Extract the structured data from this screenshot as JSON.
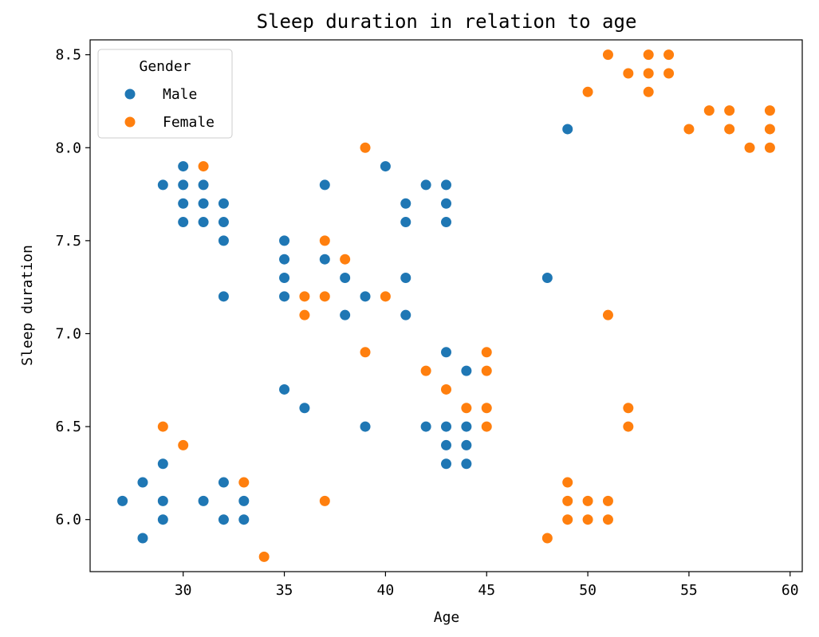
{
  "chart_data": {
    "type": "scatter",
    "title": "Sleep duration in relation to age",
    "xlabel": "Age",
    "ylabel": "Sleep duration",
    "xlim": [
      25.4,
      60.6
    ],
    "ylim": [
      5.72,
      8.58
    ],
    "xticks": [
      "30",
      "35",
      "40",
      "45",
      "50",
      "55",
      "60"
    ],
    "yticks": [
      "6.0",
      "6.5",
      "7.0",
      "7.5",
      "8.0",
      "8.5"
    ],
    "grid": false,
    "legend": {
      "title": "Gender",
      "placement": "top-left"
    },
    "series": [
      {
        "name": "Male",
        "color": "#1f77b4",
        "points": [
          [
            27,
            6.1
          ],
          [
            28,
            6.2
          ],
          [
            28,
            5.9
          ],
          [
            29,
            7.8
          ],
          [
            29,
            6.3
          ],
          [
            29,
            6.1
          ],
          [
            29,
            6.0
          ],
          [
            30,
            7.9
          ],
          [
            30,
            7.8
          ],
          [
            30,
            7.7
          ],
          [
            30,
            7.6
          ],
          [
            31,
            7.8
          ],
          [
            31,
            7.7
          ],
          [
            31,
            7.6
          ],
          [
            31,
            6.1
          ],
          [
            32,
            7.7
          ],
          [
            32,
            7.6
          ],
          [
            32,
            7.5
          ],
          [
            32,
            7.2
          ],
          [
            32,
            6.2
          ],
          [
            32,
            6.0
          ],
          [
            33,
            6.1
          ],
          [
            33,
            6.0
          ],
          [
            35,
            7.5
          ],
          [
            35,
            7.4
          ],
          [
            35,
            7.3
          ],
          [
            35,
            7.2
          ],
          [
            35,
            6.7
          ],
          [
            36,
            6.6
          ],
          [
            37,
            7.8
          ],
          [
            37,
            7.4
          ],
          [
            38,
            7.3
          ],
          [
            38,
            7.1
          ],
          [
            39,
            7.2
          ],
          [
            39,
            6.5
          ],
          [
            40,
            7.9
          ],
          [
            41,
            7.7
          ],
          [
            41,
            7.6
          ],
          [
            41,
            7.3
          ],
          [
            41,
            7.1
          ],
          [
            42,
            7.8
          ],
          [
            42,
            6.5
          ],
          [
            43,
            7.8
          ],
          [
            43,
            7.7
          ],
          [
            43,
            7.6
          ],
          [
            43,
            6.9
          ],
          [
            43,
            6.5
          ],
          [
            43,
            6.4
          ],
          [
            43,
            6.3
          ],
          [
            44,
            6.8
          ],
          [
            44,
            6.5
          ],
          [
            44,
            6.4
          ],
          [
            44,
            6.3
          ],
          [
            48,
            7.3
          ],
          [
            49,
            8.1
          ]
        ]
      },
      {
        "name": "Female",
        "color": "#ff7f0e",
        "points": [
          [
            29,
            6.5
          ],
          [
            30,
            6.4
          ],
          [
            31,
            7.9
          ],
          [
            33,
            6.2
          ],
          [
            34,
            5.8
          ],
          [
            36,
            7.2
          ],
          [
            36,
            7.1
          ],
          [
            37,
            7.5
          ],
          [
            37,
            7.2
          ],
          [
            37,
            6.1
          ],
          [
            38,
            7.4
          ],
          [
            39,
            8.0
          ],
          [
            39,
            6.9
          ],
          [
            40,
            7.2
          ],
          [
            42,
            6.8
          ],
          [
            43,
            6.7
          ],
          [
            44,
            6.6
          ],
          [
            45,
            6.9
          ],
          [
            45,
            6.8
          ],
          [
            45,
            6.6
          ],
          [
            45,
            6.5
          ],
          [
            48,
            5.9
          ],
          [
            49,
            6.2
          ],
          [
            49,
            6.1
          ],
          [
            49,
            6.0
          ],
          [
            50,
            8.3
          ],
          [
            50,
            6.1
          ],
          [
            50,
            6.0
          ],
          [
            51,
            8.5
          ],
          [
            51,
            7.1
          ],
          [
            51,
            6.1
          ],
          [
            51,
            6.0
          ],
          [
            52,
            8.4
          ],
          [
            52,
            6.6
          ],
          [
            52,
            6.5
          ],
          [
            53,
            8.5
          ],
          [
            53,
            8.4
          ],
          [
            53,
            8.3
          ],
          [
            54,
            8.5
          ],
          [
            54,
            8.4
          ],
          [
            55,
            8.1
          ],
          [
            56,
            8.2
          ],
          [
            57,
            8.2
          ],
          [
            57,
            8.1
          ],
          [
            58,
            8.0
          ],
          [
            59,
            8.2
          ],
          [
            59,
            8.1
          ],
          [
            59,
            8.0
          ]
        ]
      }
    ]
  }
}
